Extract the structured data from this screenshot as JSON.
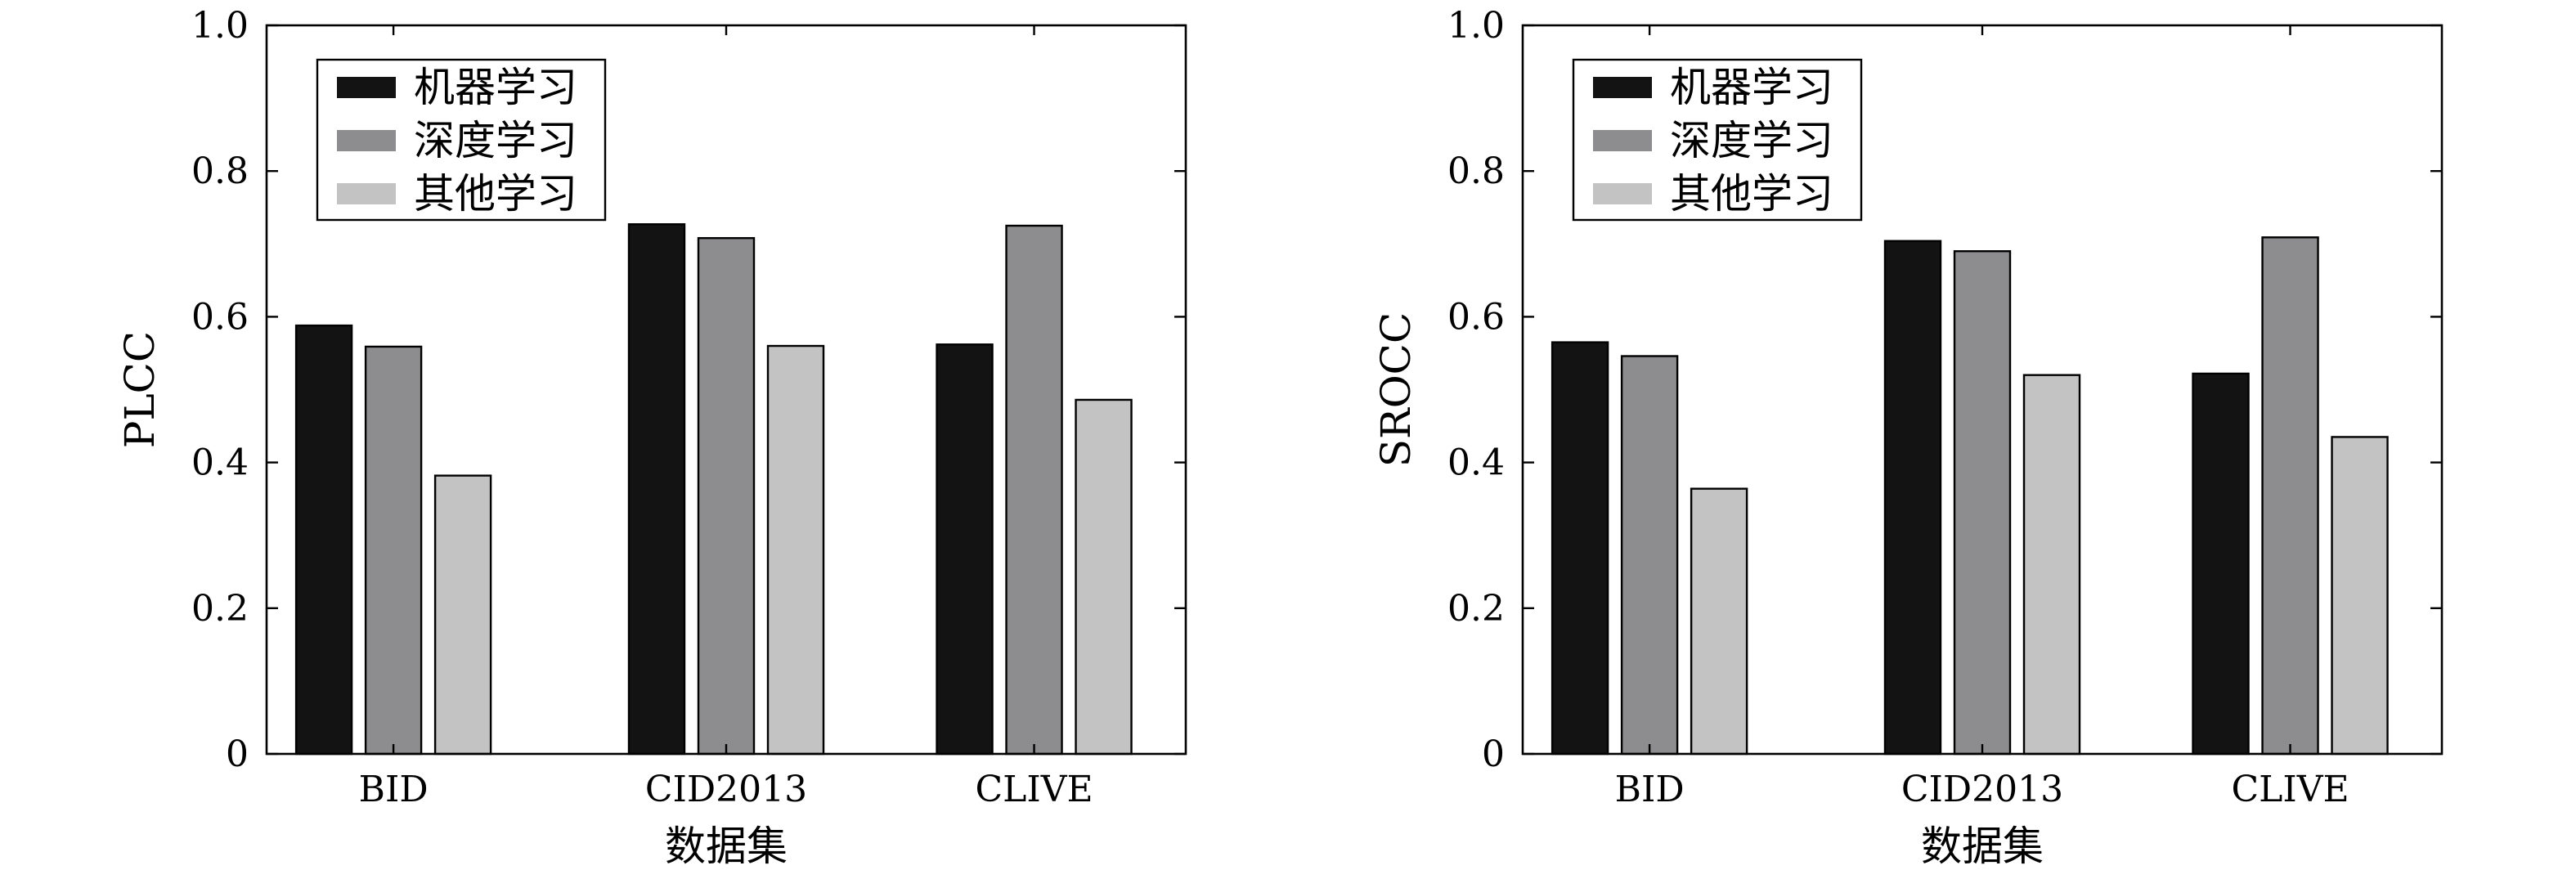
{
  "chart_data": [
    {
      "type": "bar",
      "title": "",
      "xlabel": "数据集",
      "ylabel": "PLCC",
      "ylim": [
        0,
        1.0
      ],
      "yticks": [
        "0",
        "0.2",
        "0.4",
        "0.6",
        "0.8",
        "1.0"
      ],
      "categories": [
        "BID",
        "CID2013",
        "CLIVE"
      ],
      "series": [
        {
          "name": "机器学习",
          "color": "#131313",
          "values": [
            0.588,
            0.727,
            0.562
          ]
        },
        {
          "name": "深度学习",
          "color": "#8d8d8f",
          "values": [
            0.559,
            0.708,
            0.725
          ]
        },
        {
          "name": "其他学习",
          "color": "#c3c3c3",
          "values": [
            0.382,
            0.56,
            0.486
          ]
        }
      ],
      "legend": "top-left",
      "grid": false
    },
    {
      "type": "bar",
      "title": "",
      "xlabel": "数据集",
      "ylabel": "SROCC",
      "ylim": [
        0,
        1.0
      ],
      "yticks": [
        "0",
        "0.2",
        "0.4",
        "0.6",
        "0.8",
        "1.0"
      ],
      "categories": [
        "BID",
        "CID2013",
        "CLIVE"
      ],
      "series": [
        {
          "name": "机器学习",
          "color": "#131313",
          "values": [
            0.565,
            0.704,
            0.522
          ]
        },
        {
          "name": "深度学习",
          "color": "#8d8d8f",
          "values": [
            0.546,
            0.69,
            0.709
          ]
        },
        {
          "name": "其他学习",
          "color": "#c3c3c3",
          "values": [
            0.364,
            0.52,
            0.435
          ]
        }
      ],
      "legend": "top-left",
      "grid": false
    }
  ]
}
